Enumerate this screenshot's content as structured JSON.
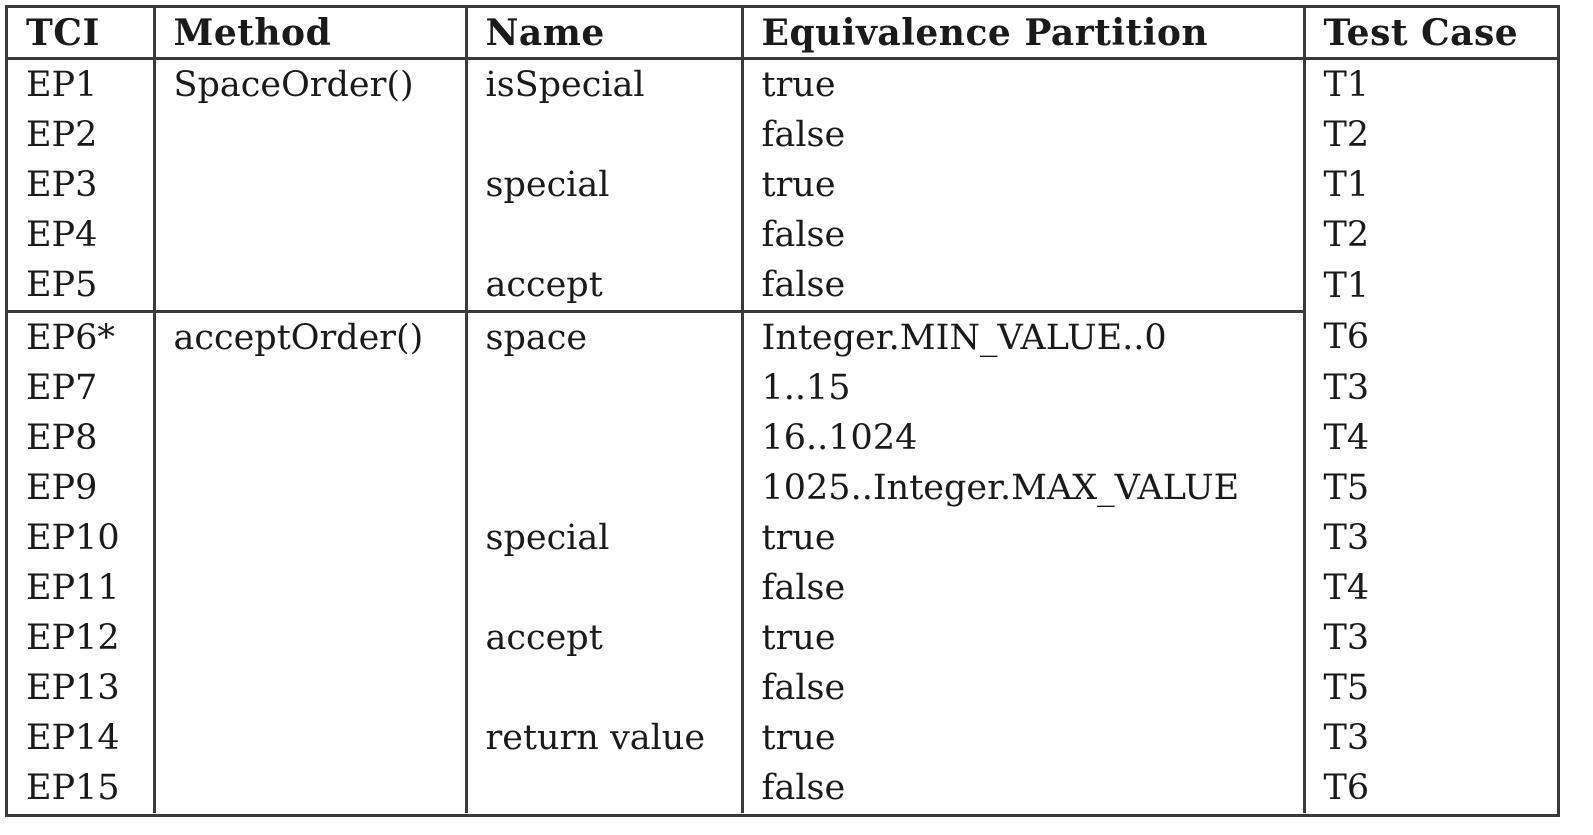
{
  "table": {
    "headers": [
      "TCI",
      "Method",
      "Name",
      "Equivalence Partition",
      "Test Case"
    ],
    "rows": [
      {
        "tci": "EP1",
        "method": "SpaceOrder()",
        "name": "isSpecial",
        "partition": "true",
        "test_case": "T1"
      },
      {
        "tci": "EP2",
        "method": "",
        "name": "",
        "partition": "false",
        "test_case": "T2"
      },
      {
        "tci": "EP3",
        "method": "",
        "name": "special",
        "partition": "true",
        "test_case": "T1"
      },
      {
        "tci": "EP4",
        "method": "",
        "name": "",
        "partition": "false",
        "test_case": "T2"
      },
      {
        "tci": "EP5",
        "method": "",
        "name": "accept",
        "partition": "false",
        "test_case": "T1"
      },
      {
        "tci": "EP6*",
        "method": "acceptOrder()",
        "name": "space",
        "partition": "Integer.MIN_VALUE..0",
        "test_case": "T6"
      },
      {
        "tci": "EP7",
        "method": "",
        "name": "",
        "partition": "1..15",
        "test_case": "T3"
      },
      {
        "tci": "EP8",
        "method": "",
        "name": "",
        "partition": "16..1024",
        "test_case": "T4"
      },
      {
        "tci": "EP9",
        "method": "",
        "name": "",
        "partition": "1025..Integer.MAX_VALUE",
        "test_case": "T5"
      },
      {
        "tci": "EP10",
        "method": "",
        "name": "special",
        "partition": "true",
        "test_case": "T3"
      },
      {
        "tci": "EP11",
        "method": "",
        "name": "",
        "partition": "false",
        "test_case": "T4"
      },
      {
        "tci": "EP12",
        "method": "",
        "name": "accept",
        "partition": "true",
        "test_case": "T3"
      },
      {
        "tci": "EP13",
        "method": "",
        "name": "",
        "partition": "false",
        "test_case": "T5"
      },
      {
        "tci": "EP14",
        "method": "",
        "name": "return value",
        "partition": "true",
        "test_case": "T3"
      },
      {
        "tci": "EP15",
        "method": "",
        "name": "",
        "partition": "false",
        "test_case": "T6"
      }
    ]
  }
}
